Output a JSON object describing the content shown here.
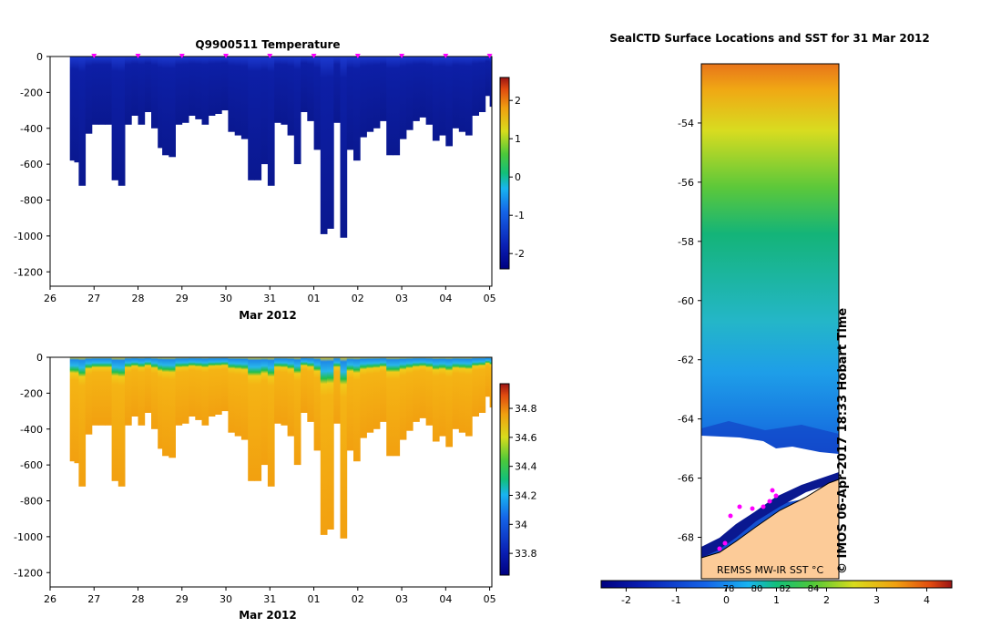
{
  "chart_data": [
    {
      "type": "heatmap",
      "title": "Q9900511  Temperature",
      "xlabel": "Mar 2012",
      "x_ticks": [
        "26",
        "27",
        "28",
        "29",
        "30",
        "31",
        "01",
        "02",
        "03",
        "04",
        "05"
      ],
      "x_range": [
        26,
        36.05
      ],
      "y_ticks": [
        0,
        -200,
        -400,
        -600,
        -800,
        -1000,
        -1200
      ],
      "ylim": [
        -1280,
        0
      ],
      "colorbar": {
        "ticks": [
          2,
          1,
          0,
          -1,
          -2
        ],
        "range": [
          -2.4,
          2.6
        ]
      },
      "profile_days": [
        26.45,
        26.55,
        26.65,
        26.8,
        26.95,
        27.1,
        27.25,
        27.4,
        27.55,
        27.7,
        27.85,
        28.0,
        28.15,
        28.3,
        28.45,
        28.55,
        28.7,
        28.85,
        29.0,
        29.15,
        29.3,
        29.45,
        29.6,
        29.75,
        29.9,
        30.05,
        30.2,
        30.35,
        30.5,
        30.65,
        30.8,
        30.95,
        31.1,
        31.25,
        31.4,
        31.55,
        31.7,
        31.85,
        32.0,
        32.15,
        32.3,
        32.45,
        32.6,
        32.75,
        32.9,
        33.05,
        33.2,
        33.35,
        33.5,
        33.65,
        33.8,
        33.95,
        34.1,
        34.25,
        34.4,
        34.55,
        34.7,
        34.85,
        35.0,
        35.15,
        35.3,
        35.45,
        35.6,
        35.75,
        35.9,
        36.0
      ],
      "profile_max_depth": [
        580,
        590,
        720,
        430,
        380,
        380,
        380,
        690,
        720,
        380,
        330,
        380,
        310,
        400,
        510,
        550,
        560,
        380,
        370,
        330,
        350,
        380,
        330,
        320,
        300,
        420,
        440,
        460,
        690,
        690,
        600,
        720,
        370,
        380,
        440,
        600,
        310,
        360,
        520,
        990,
        960,
        370,
        1010,
        520,
        580,
        450,
        420,
        400,
        360,
        550,
        550,
        460,
        410,
        360,
        340,
        380,
        470,
        440,
        500,
        400,
        420,
        440,
        330,
        310,
        220,
        280
      ],
      "surface_markers": [
        27,
        28,
        29,
        30,
        31,
        32,
        33,
        34,
        35,
        36
      ]
    },
    {
      "type": "heatmap",
      "title": "",
      "xlabel": "Mar 2012",
      "x_ticks": [
        "26",
        "27",
        "28",
        "29",
        "30",
        "31",
        "01",
        "02",
        "03",
        "04",
        "05"
      ],
      "x_range": [
        26,
        36.05
      ],
      "y_ticks": [
        0,
        -200,
        -400,
        -600,
        -800,
        -1000,
        -1200
      ],
      "ylim": [
        -1280,
        0
      ],
      "colorbar": {
        "ticks": [
          34.8,
          34.6,
          34.4,
          34.2,
          34,
          33.8
        ],
        "range": [
          33.65,
          34.97
        ]
      }
    },
    {
      "type": "heatmap",
      "title": "SealCTD Surface Locations and SST for 31 Mar 2012",
      "y_ticks": [
        -54,
        -56,
        -58,
        -60,
        -62,
        -64,
        -66,
        -68
      ],
      "ylim": [
        -69.4,
        -52.0
      ],
      "colorbar": {
        "ticks": [
          -2,
          -1,
          0,
          1,
          2,
          3,
          4
        ],
        "range": [
          -2.5,
          4.5
        ],
        "overlay_ticks": [
          "78",
          "80",
          "82",
          "84"
        ]
      },
      "legend_text": "REMSS MW-IR SST °C",
      "credit": "© IMOS 06-Apr-2017 18:33 Hobart Time"
    }
  ]
}
